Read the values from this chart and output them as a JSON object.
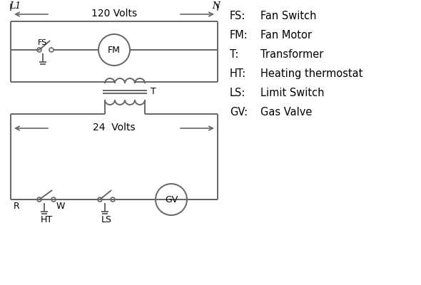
{
  "bg_color": "#ffffff",
  "line_color": "#666666",
  "text_color": "#000000",
  "legend_items": [
    [
      "FS:",
      "Fan Switch"
    ],
    [
      "FM:",
      "Fan Motor"
    ],
    [
      "T:",
      "Transformer"
    ],
    [
      "HT:",
      "Heating thermostat"
    ],
    [
      "LS:",
      "Limit Switch"
    ],
    [
      "GV:",
      "Gas Valve"
    ]
  ],
  "fig_w": 5.9,
  "fig_h": 4.0,
  "dpi": 100
}
